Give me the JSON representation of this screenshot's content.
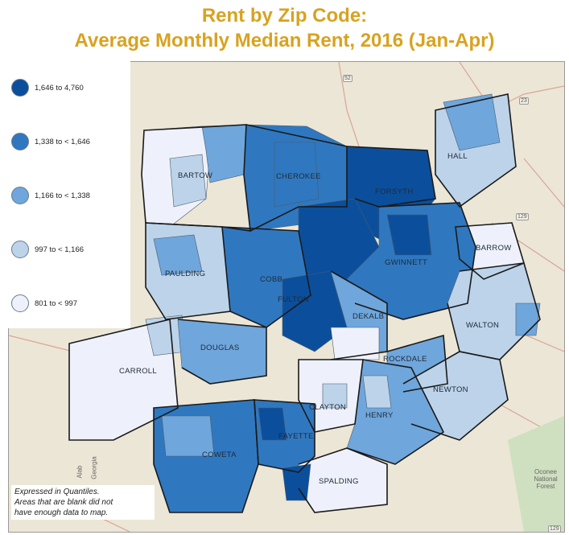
{
  "title": {
    "line1": "Rent by Zip Code:",
    "line2": "Average Monthly Median Rent, 2016 (Jan-Apr)"
  },
  "legend": {
    "items": [
      {
        "label": "1,646 to 4,760",
        "color": "#0b4f9c"
      },
      {
        "label": "1,338 to < 1,646",
        "color": "#2f78c0"
      },
      {
        "label": "1,166 to < 1,338",
        "color": "#6fa6dc"
      },
      {
        "label": "997 to < 1,166",
        "color": "#bcd3ea"
      },
      {
        "label": "801 to < 997",
        "color": "#eef1fb"
      }
    ]
  },
  "note": {
    "line1": "Expressed in Quantiles.",
    "line2": "Areas that are blank did not",
    "line3": "have enough data to map."
  },
  "counties": {
    "bartow": "BARTOW",
    "cherokee": "CHEROKEE",
    "forsyth": "FORSYTH",
    "hall": "HALL",
    "barrow": "BARROW",
    "paulding": "PAULDING",
    "cobb": "COBB",
    "gwinnett": "GWINNETT",
    "fulton": "FULTON",
    "dekalb": "DEKALB",
    "walton": "WALTON",
    "carroll": "CARROLL",
    "douglas": "DOUGLAS",
    "rockdale": "ROCKDALE",
    "clayton": "CLAYTON",
    "newton": "NEWTON",
    "henry": "HENRY",
    "fayette": "FAYETTE",
    "coweta": "COWETA",
    "spalding": "SPALDING"
  },
  "basemap": {
    "highway_52": "52",
    "highway_23": "23",
    "highway_129": "129",
    "highway_129b": "129",
    "forest": "Oconee National Forest",
    "georgia": "Georgia",
    "alabama": "Alab"
  }
}
